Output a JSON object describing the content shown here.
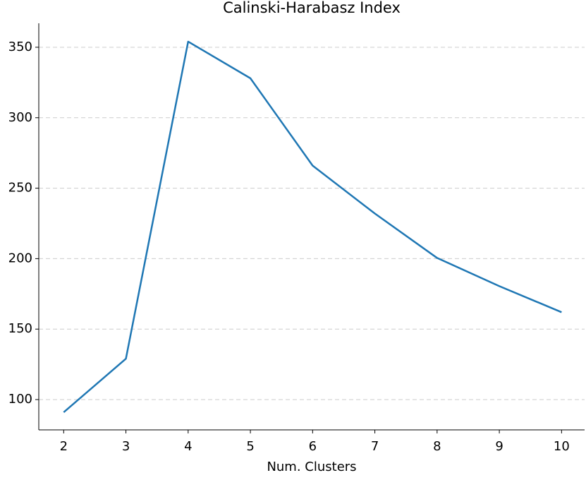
{
  "chart_data": {
    "type": "line",
    "title": "Calinski-Harabasz Index",
    "x_label": "Num. Clusters",
    "x": [
      2,
      3,
      4,
      5,
      6,
      7,
      8,
      9,
      10
    ],
    "series": [
      {
        "name": "Calinski-Harabasz Index",
        "color": "#1f77b4",
        "values": [
          91,
          129,
          354,
          328,
          266,
          232,
          200.5,
          180.5,
          162
        ]
      }
    ],
    "xlim": [
      1.6,
      10.37
    ],
    "xticks": [
      2,
      3,
      4,
      5,
      6,
      7,
      8,
      9,
      10
    ],
    "ylim": [
      78.5,
      367
    ],
    "yticks": [
      100,
      150,
      200,
      250,
      300,
      350
    ],
    "grid": true
  }
}
